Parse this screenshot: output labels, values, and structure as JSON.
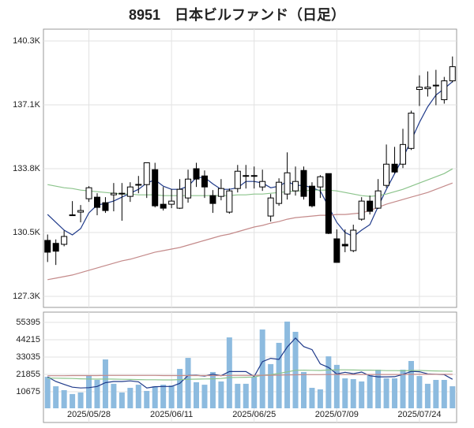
{
  "chart_data": [
    {
      "type": "candlestick",
      "title": "8951　日本ビルファンド（日足）",
      "open": [
        130150,
        130000,
        129950,
        131430,
        131590,
        132270,
        132350,
        132070,
        132470,
        132550,
        132390,
        133000,
        132990,
        133750,
        131990,
        131990,
        131790,
        132310,
        133800,
        133430,
        132430,
        132390,
        131590,
        132790,
        133430,
        133450,
        132870,
        131390,
        132030,
        132510,
        132670,
        133710,
        132910,
        132870,
        133550,
        130230,
        129950,
        129630,
        131230,
        132150,
        131790,
        132950,
        134030,
        134030,
        134830,
        137830,
        137870,
        138030,
        137310,
        138270
      ],
      "high": [
        130450,
        130200,
        130650,
        132150,
        131950,
        132910,
        132550,
        132350,
        133070,
        133070,
        133110,
        133430,
        134100,
        134100,
        132870,
        132750,
        133270,
        133750,
        134100,
        133710,
        132710,
        133270,
        132790,
        133990,
        133990,
        133910,
        133750,
        132510,
        133310,
        134630,
        133910,
        133910,
        133110,
        133470,
        133550,
        130710,
        130710,
        130950,
        132350,
        132430,
        133270,
        135030,
        134910,
        135830,
        136750,
        138550,
        138750,
        138830,
        138470,
        139510
      ],
      "low": [
        129050,
        128900,
        129850,
        131400,
        131070,
        132110,
        131430,
        131550,
        131630,
        131150,
        132110,
        132550,
        132310,
        131830,
        131670,
        131790,
        131750,
        132070,
        132870,
        132310,
        131550,
        132190,
        131510,
        132590,
        132790,
        132790,
        132670,
        131110,
        131910,
        132230,
        132430,
        132230,
        131830,
        132310,
        130470,
        129030,
        129550,
        129550,
        131150,
        131470,
        131750,
        132830,
        133550,
        133830,
        134750,
        136990,
        137470,
        137030,
        137110,
        138190
      ],
      "close": [
        129550,
        129600,
        130350,
        131450,
        131670,
        132830,
        131830,
        131670,
        132550,
        132550,
        132870,
        132990,
        134100,
        131910,
        131790,
        132150,
        132750,
        133270,
        133270,
        132870,
        132030,
        132790,
        132670,
        133670,
        133450,
        133430,
        133150,
        132310,
        133110,
        133590,
        133150,
        132390,
        131910,
        133390,
        130510,
        129030,
        129870,
        130670,
        132150,
        131630,
        132670,
        134030,
        133630,
        135030,
        136630,
        137950,
        137950,
        138050,
        138270,
        138990
      ],
      "up_color": "#ffffff",
      "down_color": "#000000",
      "lines": [
        {
          "color": "#1f3a8a",
          "values": [
            131470,
            131070,
            130670,
            130430,
            130750,
            131550,
            131950,
            132030,
            132150,
            132350,
            132550,
            132750,
            133070,
            133230,
            132910,
            132750,
            132750,
            132910,
            133350,
            133350,
            133030,
            132750,
            132750,
            132830,
            133150,
            133150,
            133070,
            132830,
            132910,
            133150,
            132950,
            132950,
            132830,
            132670,
            131870,
            131070,
            130550,
            130350,
            130670,
            130950,
            131870,
            132750,
            133550,
            134350,
            135230,
            136150,
            136950,
            137550,
            137870,
            138230
          ]
        },
        {
          "color": "#8cc48c",
          "values": [
            132990,
            132910,
            132830,
            132790,
            132710,
            132670,
            132630,
            132590,
            132550,
            132510,
            132510,
            132470,
            132470,
            132470,
            132430,
            132430,
            132430,
            132430,
            132430,
            132430,
            132430,
            132430,
            132430,
            132470,
            132470,
            132510,
            132510,
            132550,
            132590,
            132630,
            132670,
            132670,
            132710,
            132710,
            132710,
            132670,
            132590,
            132510,
            132430,
            132390,
            132430,
            132510,
            132630,
            132750,
            132910,
            133070,
            133230,
            133390,
            133550,
            133790
          ]
        },
        {
          "color": "#c48a8a",
          "values": [
            128150,
            128230,
            128310,
            128390,
            128510,
            128630,
            128750,
            128870,
            128990,
            129110,
            129190,
            129310,
            129430,
            129550,
            129630,
            129710,
            129790,
            129910,
            130030,
            130150,
            130270,
            130390,
            130470,
            130590,
            130710,
            130830,
            130910,
            131030,
            131110,
            131230,
            131310,
            131350,
            131390,
            131430,
            131430,
            131470,
            131470,
            131510,
            131550,
            131670,
            131830,
            131990,
            132110,
            132230,
            132350,
            132470,
            132590,
            132750,
            132910,
            133070
          ]
        }
      ],
      "ylim": [
        126740,
        140900
      ],
      "yticks": [
        {
          "value": 127300,
          "label": "127.3K"
        },
        {
          "value": 130550,
          "label": "130.5K"
        },
        {
          "value": 133800,
          "label": "133.8K"
        },
        {
          "value": 137050,
          "label": "137.1K"
        },
        {
          "value": 140300,
          "label": "140.3K"
        }
      ],
      "grid": true
    },
    {
      "type": "bar",
      "categories": [
        null,
        null,
        null,
        null,
        null,
        "2025/05/28",
        null,
        null,
        null,
        null,
        null,
        null,
        null,
        null,
        null,
        "2025/06/11",
        null,
        null,
        null,
        null,
        null,
        null,
        null,
        null,
        null,
        "2025/06/25",
        null,
        null,
        null,
        null,
        null,
        null,
        null,
        null,
        null,
        "2025/07/09",
        null,
        null,
        null,
        null,
        null,
        null,
        null,
        null,
        null,
        "2025/07/24",
        null,
        null,
        null,
        null
      ],
      "values": [
        20300,
        14200,
        11700,
        9200,
        10200,
        21300,
        18300,
        31500,
        15800,
        10200,
        13200,
        15200,
        11200,
        14200,
        15200,
        14700,
        25400,
        32500,
        16800,
        15200,
        23400,
        17300,
        45700,
        15800,
        15800,
        20300,
        50800,
        28500,
        42200,
        55900,
        49300,
        23400,
        13200,
        12200,
        33500,
        28000,
        19300,
        18800,
        17300,
        21300,
        24900,
        19300,
        19300,
        24900,
        30500,
        20800,
        15800,
        18300,
        18300,
        14200
      ],
      "color": "#8dbbdf",
      "lines": [
        {
          "color": "#1f3a8a",
          "values": [
            20300,
            17300,
            15400,
            13600,
            13100,
            13300,
            14100,
            16500,
            17300,
            17300,
            17700,
            17100,
            13100,
            13900,
            14100,
            14100,
            16100,
            21200,
            21300,
            20800,
            22000,
            21000,
            23700,
            23700,
            23700,
            20500,
            30100,
            32200,
            31500,
            39500,
            45300,
            39800,
            37800,
            28600,
            26300,
            22100,
            23200,
            22300,
            23400,
            21000,
            20300,
            20300,
            20400,
            21900,
            23800,
            23600,
            22200,
            21900,
            21700,
            18700
          ]
        },
        {
          "color": "#8cc48c",
          "values": [
            19500,
            19400,
            19300,
            19200,
            19000,
            18900,
            18800,
            18900,
            18800,
            18700,
            18600,
            18500,
            18400,
            18400,
            18300,
            18300,
            18500,
            18700,
            18800,
            18900,
            19000,
            19200,
            19800,
            19900,
            20000,
            20200,
            21300,
            21700,
            22500,
            23500,
            24500,
            24600,
            24500,
            24400,
            24700,
            24800,
            24800,
            24700,
            24600,
            24600,
            24500,
            24300,
            24300,
            24200,
            24400,
            24400,
            24200,
            24100,
            24000,
            23900
          ]
        },
        {
          "color": "#c48a8a",
          "values": [
            21000,
            21000,
            21000,
            21100,
            21100,
            21100,
            21100,
            21200,
            21200,
            21200,
            21200,
            21200,
            21200,
            21200,
            21100,
            21100,
            21100,
            21100,
            21100,
            21100,
            21100,
            21100,
            21200,
            21200,
            21200,
            21200,
            21300,
            21300,
            21400,
            21500,
            21600,
            21700,
            21700,
            21700,
            21800,
            21800,
            21800,
            21800,
            21800,
            21800,
            21800,
            21800,
            21800,
            21800,
            21900,
            21900,
            21900,
            21900,
            21900,
            21900
          ]
        }
      ],
      "ylim": [
        0,
        62000
      ],
      "yticks": [
        10675,
        21855,
        33035,
        44215,
        55395
      ],
      "grid": true
    }
  ]
}
